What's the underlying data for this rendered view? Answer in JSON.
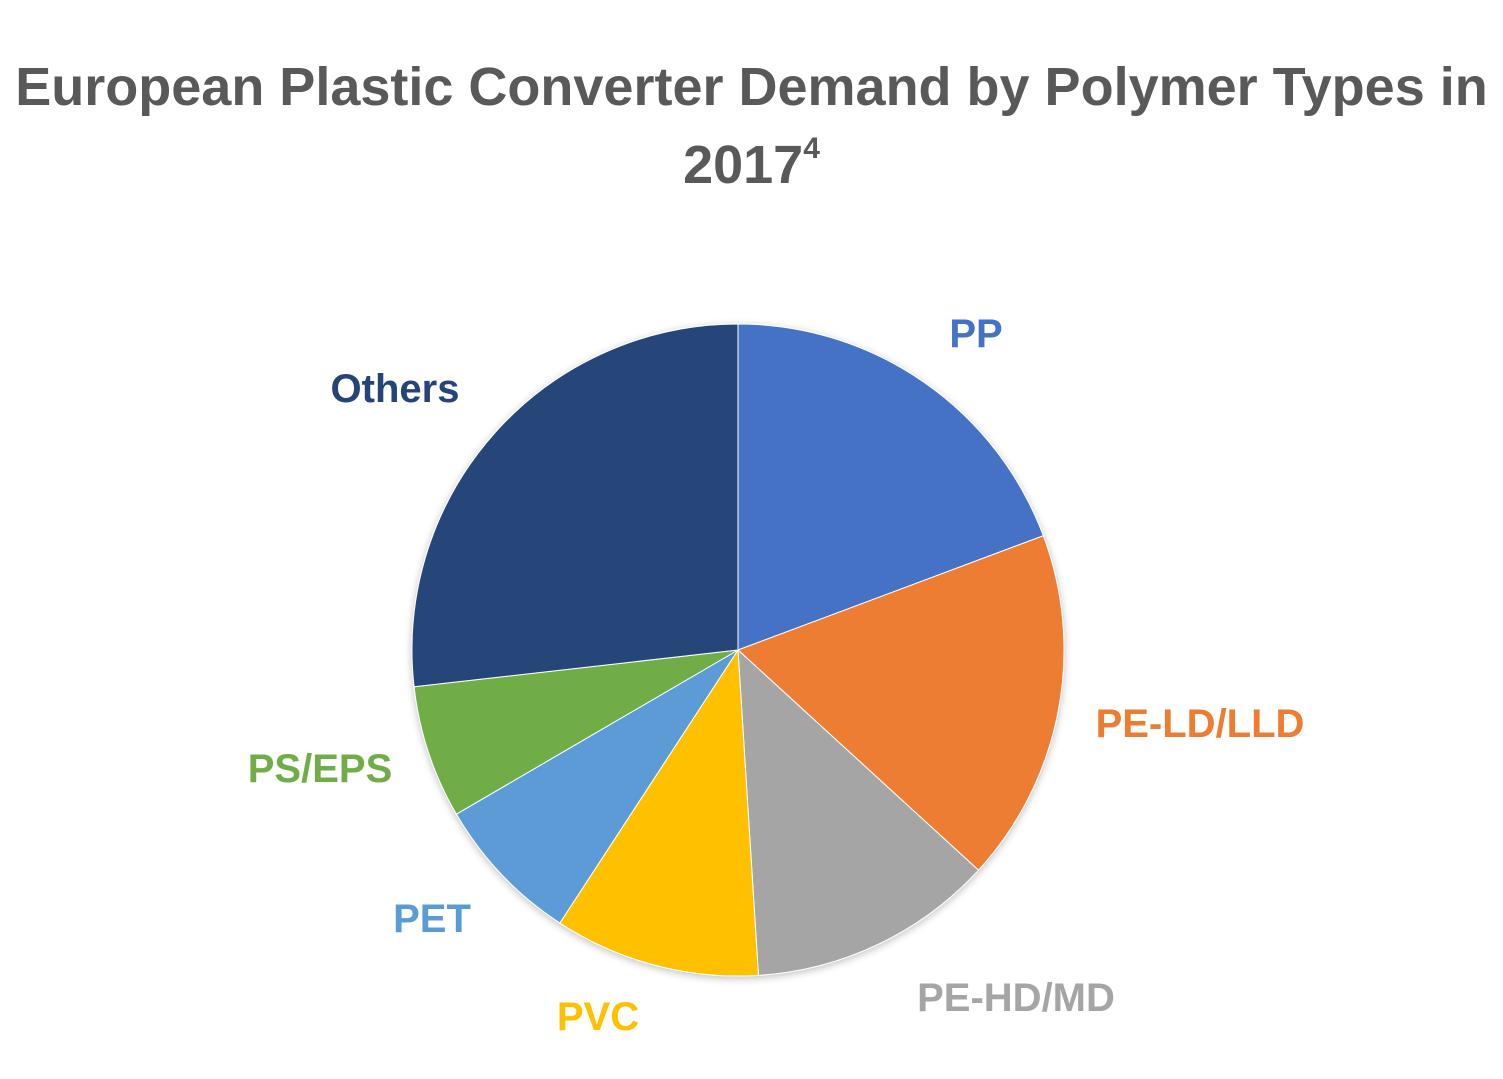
{
  "title": {
    "main": "European Plastic Converter Demand by Polymer Types in 2017",
    "superscript": "4"
  },
  "chart_data": {
    "type": "pie",
    "title": "European Plastic Converter Demand by Polymer Types in 2017",
    "start_angle_deg": 0,
    "direction": "clockwise",
    "legend": "none (labels outside slices)",
    "slices": [
      {
        "label": "PP",
        "value": 19.3,
        "color": "#4472C4"
      },
      {
        "label": "PE-LD/LLD",
        "value": 17.5,
        "color": "#ED7D31"
      },
      {
        "label": "PE-HD/MD",
        "value": 12.2,
        "color": "#A5A5A5"
      },
      {
        "label": "PVC",
        "value": 10.2,
        "color": "#FFC000"
      },
      {
        "label": "PET",
        "value": 7.4,
        "color": "#5B9BD5"
      },
      {
        "label": "PS/EPS",
        "value": 6.6,
        "color": "#70AD47"
      },
      {
        "label": "Others",
        "value": 26.8,
        "color": "#264478"
      }
    ]
  }
}
